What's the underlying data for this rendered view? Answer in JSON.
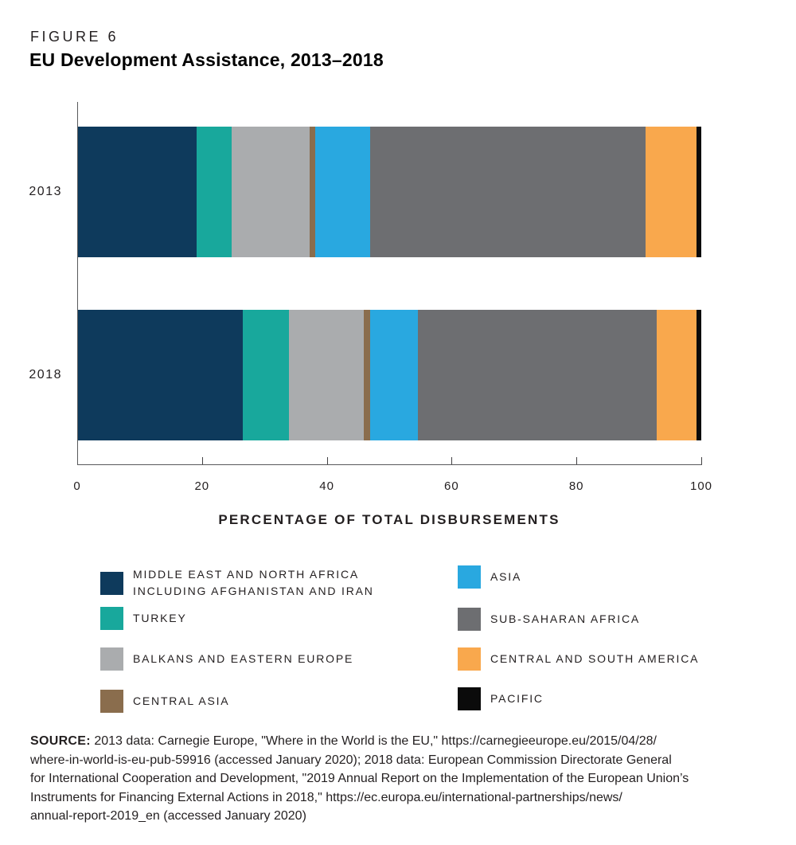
{
  "header": {
    "figure_label": "FIGURE 6",
    "title": "EU Development Assistance, 2013–2018"
  },
  "chart_data": {
    "type": "bar",
    "orientation": "horizontal",
    "stacked": true,
    "categories": [
      "2013",
      "2018"
    ],
    "series": [
      {
        "name": "Middle East and North Africa including Afghanistan and Iran",
        "legend_label": "MIDDLE EAST AND NORTH AFRICA\nINCLUDING AFGHANISTAN AND IRAN",
        "color": "#0e3a5c",
        "values": [
          19.0,
          26.5
        ]
      },
      {
        "name": "Turkey",
        "legend_label": "TURKEY",
        "color": "#18a89c",
        "values": [
          5.7,
          7.3
        ]
      },
      {
        "name": "Balkans and Eastern Europe",
        "legend_label": "BALKANS AND EASTERN EUROPE",
        "color": "#aaacae",
        "values": [
          12.5,
          12.0
        ]
      },
      {
        "name": "Central Asia",
        "legend_label": "CENTRAL ASIA",
        "color": "#8a6d4d",
        "values": [
          0.9,
          1.1
        ]
      },
      {
        "name": "Asia",
        "legend_label": "ASIA",
        "color": "#29a8e0",
        "values": [
          8.8,
          7.7
        ]
      },
      {
        "name": "Sub-Saharan Africa",
        "legend_label": "SUB-SAHARAN AFRICA",
        "color": "#6d6e71",
        "values": [
          44.2,
          38.3
        ]
      },
      {
        "name": "Central and South America",
        "legend_label": "CENTRAL AND SOUTH AMERICA",
        "color": "#f9a84d",
        "values": [
          8.2,
          6.4
        ]
      },
      {
        "name": "Pacific",
        "legend_label": "PACIFIC",
        "color": "#0b0b0b",
        "values": [
          0.7,
          0.7
        ]
      }
    ],
    "xlabel": "PERCENTAGE OF TOTAL DISBURSEMENTS",
    "xlim": [
      0,
      100
    ],
    "xticks": [
      0,
      20,
      40,
      60,
      80,
      100
    ],
    "grid": false,
    "legend_position": "bottom-two-columns",
    "legend_columns": [
      [
        0,
        1,
        2,
        3
      ],
      [
        4,
        5,
        6,
        7
      ]
    ]
  },
  "source": {
    "label": "SOURCE:",
    "lines": [
      "2013 data: Carnegie Europe, \"Where in the World is the EU,\" https://carnegieeurope.eu/2015/04/28/",
      "where-in-world-is-eu-pub-59916 (accessed January 2020); 2018 data: European Commission Directorate General",
      "for International Cooperation and Development, \"2019 Annual Report on the Implementation of the European Union’s",
      "Instruments for Financing External Actions in 2018,\" https://ec.europa.eu/international-partnerships/news/",
      "annual-report-2019_en (accessed January 2020)"
    ]
  },
  "colors": {
    "text": "#231f20",
    "axis": "#58595b",
    "background": "#ffffff"
  }
}
